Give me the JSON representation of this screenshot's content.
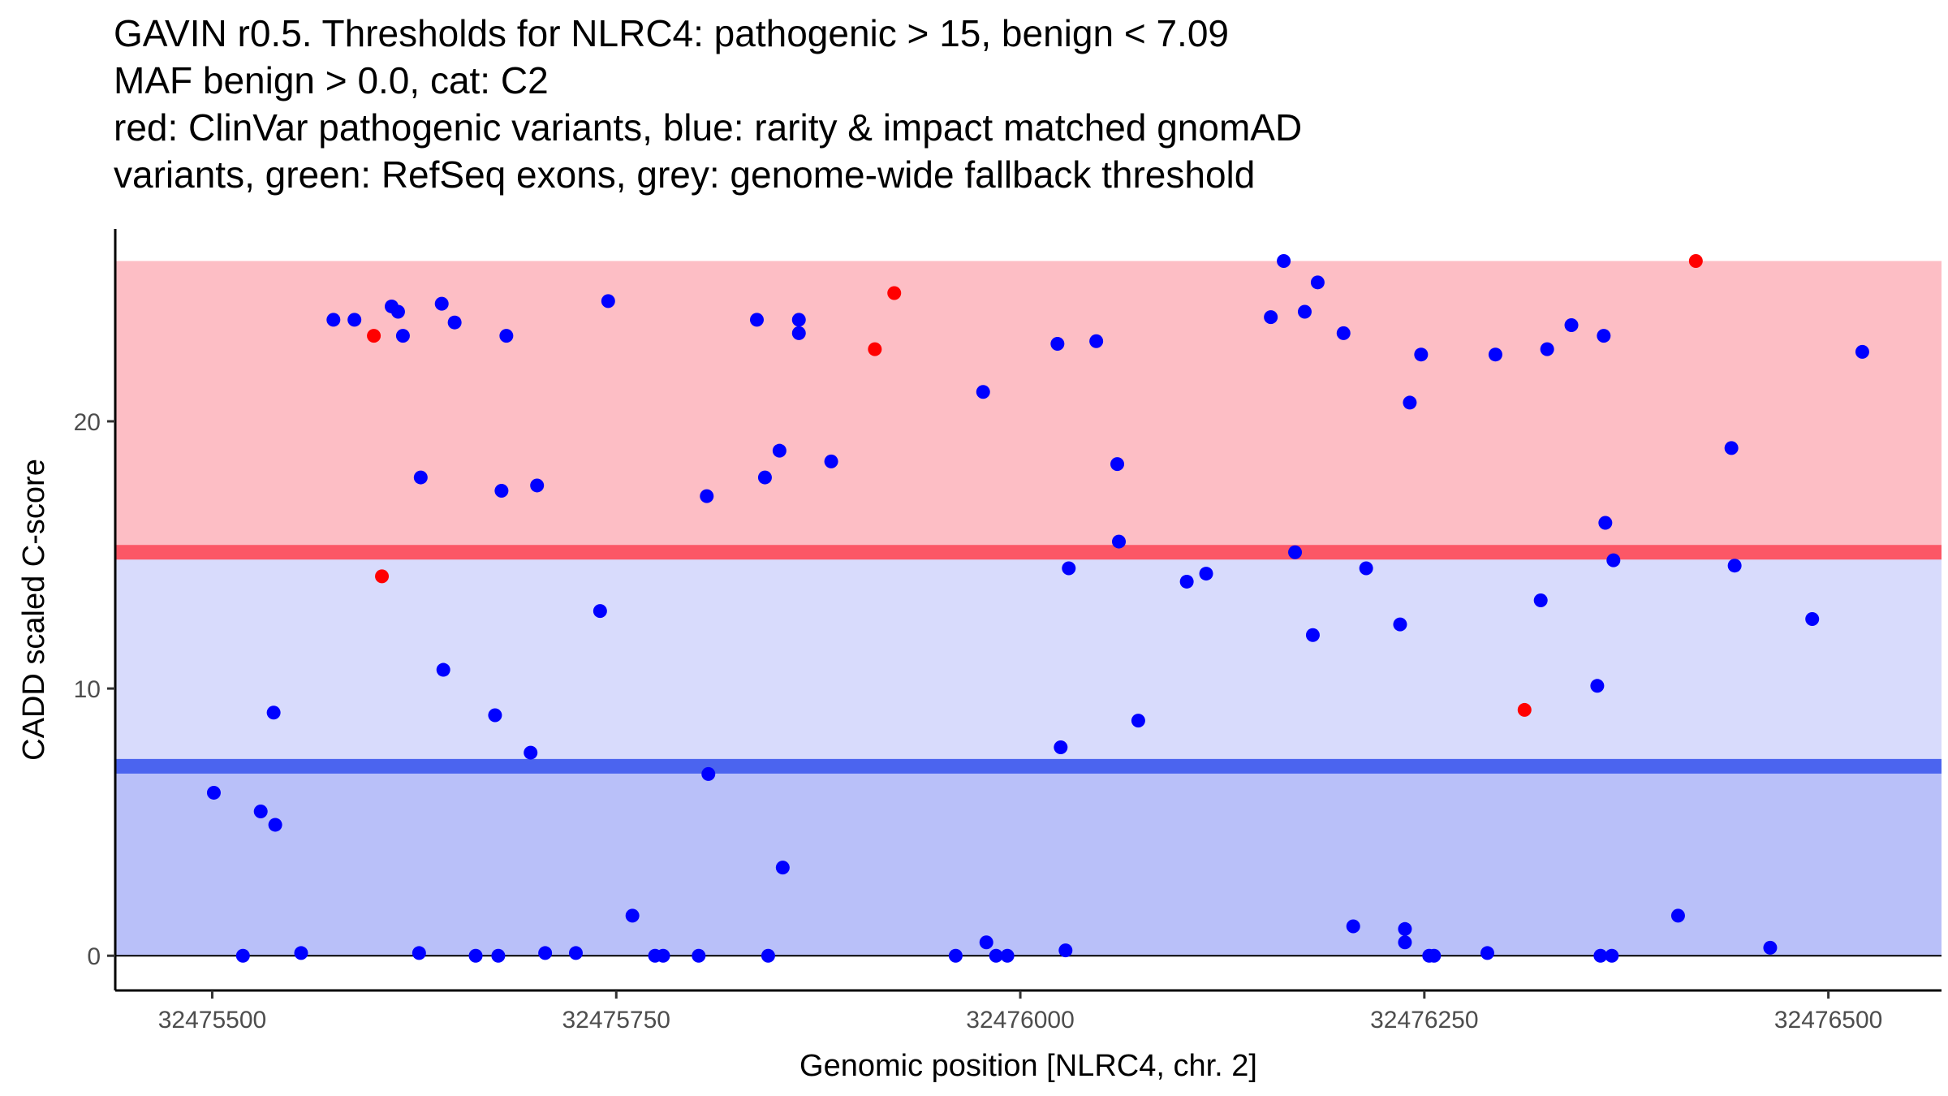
{
  "title_lines": [
    "GAVIN r0.5. Thresholds for NLRC4: pathogenic > 15, benign < 7.09",
    "MAF benign > 0.0, cat: C2",
    "red: ClinVar pathogenic variants, blue: rarity & impact matched gnomAD",
    "variants, green: RefSeq exons, grey: genome-wide fallback threshold"
  ],
  "chart_data": {
    "type": "scatter",
    "title": "GAVIN r0.5. Thresholds for NLRC4: pathogenic > 15, benign < 7.09 MAF benign > 0.0, cat: C2",
    "xlabel": "Genomic position [NLRC4, chr. 2]",
    "ylabel": "CADD scaled C-score",
    "xlim": [
      32475440,
      32476570
    ],
    "ylim": [
      -1.3,
      27.2
    ],
    "x_ticks": [
      32475500,
      32475750,
      32476000,
      32476250,
      32476500
    ],
    "x_tick_labels": [
      "32475500",
      "32475750",
      "32476000",
      "32476250",
      "32476500"
    ],
    "y_ticks": [
      0,
      10,
      20
    ],
    "y_tick_labels": [
      "0",
      "10",
      "20"
    ],
    "grid": false,
    "thresholds": {
      "pathogenic": 15.1,
      "benign": 7.09,
      "pathogenic_band": [
        15.1,
        26
      ],
      "middle_band": [
        7.09,
        15.1
      ],
      "benign_band": [
        0,
        7.09
      ]
    },
    "colors": {
      "pathogenic_band": "#fdbec5",
      "middle_band": "#d8dbfc",
      "benign_band": "#b9c0f9",
      "pathogenic_line": "#fc5766",
      "benign_line": "#4b64ef",
      "clinvar": "#ff0000",
      "gnomad": "#0000ff"
    },
    "series": [
      {
        "name": "ClinVar pathogenic variants",
        "color": "#ff0000",
        "points": [
          [
            32475600,
            23.2
          ],
          [
            32475605,
            14.2
          ],
          [
            32475910,
            22.7
          ],
          [
            32475922,
            24.8
          ],
          [
            32476312,
            9.2
          ],
          [
            32476418,
            26.0
          ]
        ]
      },
      {
        "name": "rarity & impact matched gnomAD variants",
        "color": "#0000ff",
        "points": [
          [
            32475501,
            6.1
          ],
          [
            32475530,
            5.4
          ],
          [
            32475538,
            9.1
          ],
          [
            32475539,
            4.9
          ],
          [
            32475519,
            0
          ],
          [
            32475555,
            0.1
          ],
          [
            32475575,
            23.8
          ],
          [
            32475588,
            23.8
          ],
          [
            32475611,
            24.3
          ],
          [
            32475615,
            24.1
          ],
          [
            32475618,
            23.2
          ],
          [
            32475628,
            0.1
          ],
          [
            32475629,
            17.9
          ],
          [
            32475642,
            24.4
          ],
          [
            32475643,
            10.7
          ],
          [
            32475650,
            23.7
          ],
          [
            32475663,
            0
          ],
          [
            32475675,
            9.0
          ],
          [
            32475677,
            0
          ],
          [
            32475679,
            17.4
          ],
          [
            32475682,
            23.2
          ],
          [
            32475697,
            7.6
          ],
          [
            32475701,
            17.6
          ],
          [
            32475706,
            0.1
          ],
          [
            32475725,
            0.1
          ],
          [
            32475740,
            12.9
          ],
          [
            32475745,
            24.5
          ],
          [
            32475760,
            1.5
          ],
          [
            32475774,
            0
          ],
          [
            32475779,
            0
          ],
          [
            32475801,
            0
          ],
          [
            32475806,
            17.2
          ],
          [
            32475807,
            6.8
          ],
          [
            32475837,
            23.8
          ],
          [
            32475842,
            17.9
          ],
          [
            32475844,
            0
          ],
          [
            32475851,
            18.9
          ],
          [
            32475853,
            3.3
          ],
          [
            32475863,
            23.8
          ],
          [
            32475863,
            23.3
          ],
          [
            32475883,
            18.5
          ],
          [
            32475960,
            0
          ],
          [
            32475977,
            21.1
          ],
          [
            32475979,
            0.5
          ],
          [
            32475985,
            0
          ],
          [
            32475992,
            0
          ],
          [
            32476023,
            22.9
          ],
          [
            32476025,
            7.8
          ],
          [
            32476028,
            0.2
          ],
          [
            32476030,
            14.5
          ],
          [
            32476047,
            23.0
          ],
          [
            32476060,
            18.4
          ],
          [
            32476061,
            15.5
          ],
          [
            32476073,
            8.8
          ],
          [
            32476103,
            14.0
          ],
          [
            32476115,
            14.3
          ],
          [
            32476155,
            23.9
          ],
          [
            32476163,
            26.0
          ],
          [
            32476170,
            15.1
          ],
          [
            32476176,
            24.1
          ],
          [
            32476181,
            12.0
          ],
          [
            32476184,
            25.2
          ],
          [
            32476200,
            23.3
          ],
          [
            32476206,
            1.1
          ],
          [
            32476214,
            14.5
          ],
          [
            32476235,
            12.4
          ],
          [
            32476238,
            0.5
          ],
          [
            32476238,
            1.0
          ],
          [
            32476241,
            20.7
          ],
          [
            32476248,
            22.5
          ],
          [
            32476253,
            0
          ],
          [
            32476256,
            0
          ],
          [
            32476289,
            0.1
          ],
          [
            32476294,
            22.5
          ],
          [
            32476322,
            13.3
          ],
          [
            32476326,
            22.7
          ],
          [
            32476341,
            23.6
          ],
          [
            32476357,
            10.1
          ],
          [
            32476359,
            0
          ],
          [
            32476361,
            23.2
          ],
          [
            32476362,
            16.2
          ],
          [
            32476366,
            0
          ],
          [
            32476367,
            14.8
          ],
          [
            32476407,
            1.5
          ],
          [
            32476440,
            19.0
          ],
          [
            32476442,
            14.6
          ],
          [
            32476464,
            0.3
          ],
          [
            32476490,
            12.6
          ],
          [
            32476521,
            22.6
          ]
        ]
      }
    ]
  }
}
